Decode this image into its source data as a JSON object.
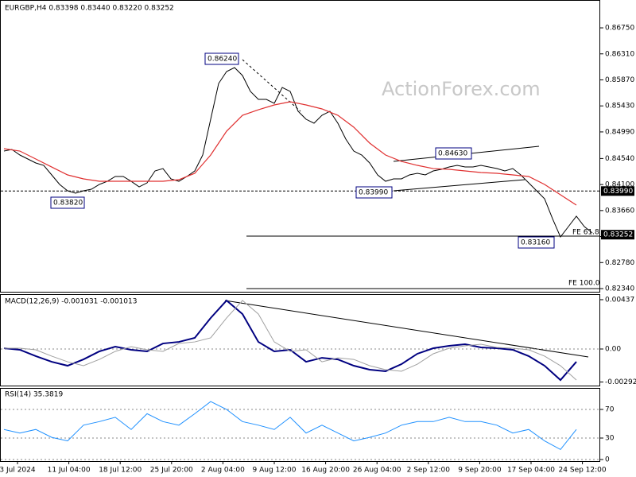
{
  "chart_data": {
    "type": "line",
    "title": "EURGBP,H4  0.83398 0.83440 0.83220 0.83252",
    "watermark": "ActionForex.com",
    "ylim": [
      0.82273,
      0.87221
    ],
    "yticks": [
      {
        "value": 0.8675,
        "label": "0.86750"
      },
      {
        "value": 0.8631,
        "label": "0.86310"
      },
      {
        "value": 0.8587,
        "label": "0.85870"
      },
      {
        "value": 0.8543,
        "label": "0.85430"
      },
      {
        "value": 0.8499,
        "label": "0.84990"
      },
      {
        "value": 0.8454,
        "label": "0.84540"
      },
      {
        "value": 0.841,
        "label": "0.84100"
      },
      {
        "value": 0.8366,
        "label": "0.83660"
      },
      {
        "value": 0.8322,
        "label": "0.83220"
      },
      {
        "value": 0.8278,
        "label": "0.82780"
      },
      {
        "value": 0.8234,
        "label": "0.82340"
      }
    ],
    "levels": [
      {
        "value": 0.8399,
        "label": "0.83990"
      },
      {
        "value": 0.83252,
        "label": "0.83252"
      }
    ],
    "annotations": [
      "0.86240",
      "0.83820",
      "0.83990",
      "0.84630",
      "0.83160",
      "FE 61.8",
      "FE 100.0"
    ],
    "xlabels": [
      "3 Jul 2024",
      "11 Jul 04:00",
      "18 Jul 12:00",
      "25 Jul 20:00",
      "2 Aug 04:00",
      "9 Aug 12:00",
      "16 Aug 20:00",
      "26 Aug 04:00",
      "2 Sep 12:00",
      "9 Sep 20:00",
      "17 Sep 04:00",
      "24 Sep 12:00"
    ],
    "series": [
      {
        "name": "price",
        "color": "#000000",
        "values": [
          0.84666,
          0.84693,
          0.84599,
          0.84532,
          0.84465,
          0.84424,
          0.84263,
          0.84102,
          0.83994,
          0.83954,
          0.83994,
          0.84021,
          0.84102,
          0.84155,
          0.84236,
          0.84236,
          0.84155,
          0.84061,
          0.84128,
          0.8433,
          0.8437,
          0.84196,
          0.84155,
          0.84236,
          0.8433,
          0.84599,
          0.85204,
          0.85809,
          0.86011,
          0.86078,
          0.85944,
          0.85675,
          0.8554,
          0.8554,
          0.85473,
          0.85742,
          0.85675,
          0.85339,
          0.85204,
          0.85137,
          0.85271,
          0.85339,
          0.85137,
          0.84868,
          0.84666,
          0.84599,
          0.84465,
          0.84263,
          0.84155,
          0.84196,
          0.84196,
          0.84263,
          0.8429,
          0.84263,
          0.8433,
          0.84357,
          0.84397,
          0.84424,
          0.84397,
          0.84397,
          0.84424,
          0.84397,
          0.8437,
          0.8433,
          0.8437,
          0.84263,
          0.84128,
          0.83994,
          0.83859,
          0.83523,
          0.83214,
          0.83389,
          0.83564,
          0.83389,
          0.83281
        ]
      },
      {
        "name": "ma",
        "color": "#e03030",
        "x": [
          0,
          2,
          4,
          6,
          8,
          10,
          12,
          14,
          16,
          18,
          20,
          22,
          24,
          26,
          28,
          30,
          32,
          34,
          36,
          38,
          40,
          42,
          44,
          46,
          48,
          50,
          52,
          54,
          56,
          58,
          60,
          62,
          64,
          66,
          68,
          70,
          72
        ],
        "values": [
          0.84707,
          0.84666,
          0.84532,
          0.84397,
          0.84263,
          0.84196,
          0.84155,
          0.84155,
          0.84155,
          0.84155,
          0.84155,
          0.84182,
          0.8429,
          0.84599,
          0.85002,
          0.85271,
          0.85365,
          0.85446,
          0.855,
          0.85446,
          0.85379,
          0.85271,
          0.8507,
          0.84801,
          0.84599,
          0.84491,
          0.84424,
          0.8437,
          0.84357,
          0.8433,
          0.84303,
          0.8429,
          0.84263,
          0.84236,
          0.84102,
          0.83927,
          0.83752
        ]
      }
    ],
    "macd": {
      "title": "MACD(12,26,9) -0.001031 -0.001013",
      "ylim": [
        -0.00331,
        0.00479
      ],
      "yticks": [
        0.00437,
        {
          "value": 0,
          "label": "0.00"
        },
        -0.002922
      ],
      "x": [
        0,
        2,
        4,
        6,
        8,
        10,
        12,
        14,
        16,
        18,
        20,
        22,
        24,
        26,
        28,
        30,
        32,
        34,
        36,
        38,
        40,
        42,
        44,
        46,
        48,
        50,
        52,
        54,
        56,
        58,
        60,
        62,
        64,
        66,
        68,
        70,
        72
      ],
      "series": [
        {
          "name": "macd",
          "color": "#000080",
          "values": [
            7e-05,
            -7e-05,
            -0.00063,
            -0.00113,
            -0.00148,
            -0.00092,
            -0.00021,
            0.00021,
            -7e-05,
            -0.00021,
            0.00049,
            0.00063,
            0.00099,
            0.00275,
            0.0043,
            0.0031,
            0.00063,
            -0.00021,
            -7e-05,
            -0.00113,
            -0.00078,
            -0.00092,
            -0.00148,
            -0.00183,
            -0.00197,
            -0.00134,
            -0.00042,
            7e-05,
            0.00028,
            0.00042,
            0.00014,
            7e-05,
            -7e-05,
            -0.00063,
            -0.00148,
            -0.00275,
            -0.00113
          ]
        },
        {
          "name": "signal",
          "color": "#a0a0a0",
          "values": [
            7e-05,
            7e-05,
            -7e-05,
            -0.00063,
            -0.00113,
            -0.00148,
            -0.00092,
            -0.00021,
            0.00021,
            -7e-05,
            -0.00021,
            0.00049,
            0.00063,
            0.00099,
            0.00275,
            0.0043,
            0.0031,
            0.00063,
            -0.00021,
            -7e-05,
            -0.00113,
            -0.00078,
            -0.00092,
            -0.00148,
            -0.00183,
            -0.00197,
            -0.00134,
            -0.00042,
            7e-05,
            0.00028,
            0.00042,
            0.00014,
            7e-05,
            -7e-05,
            -0.00063,
            -0.00148,
            -0.00275
          ]
        }
      ]
    },
    "rsi": {
      "title": "RSI(14) 35.3819",
      "ylim": [
        -2.2,
        100
      ],
      "yticks": [
        70,
        30,
        0
      ],
      "x": [
        0,
        2,
        4,
        6,
        8,
        10,
        12,
        14,
        16,
        18,
        20,
        22,
        24,
        26,
        28,
        30,
        32,
        34,
        36,
        38,
        40,
        42,
        44,
        46,
        48,
        50,
        52,
        54,
        56,
        58,
        60,
        62,
        64,
        66,
        68,
        70,
        72
      ],
      "color": "#1e90ff",
      "values": [
        42,
        37,
        42,
        31,
        26,
        48,
        53,
        59,
        42,
        64,
        53,
        48,
        64,
        81,
        70,
        53,
        48,
        42,
        59,
        37,
        48,
        37,
        26,
        31,
        37,
        48,
        53,
        53,
        59,
        53,
        53,
        48,
        37,
        42,
        26,
        14,
        42
      ]
    }
  }
}
